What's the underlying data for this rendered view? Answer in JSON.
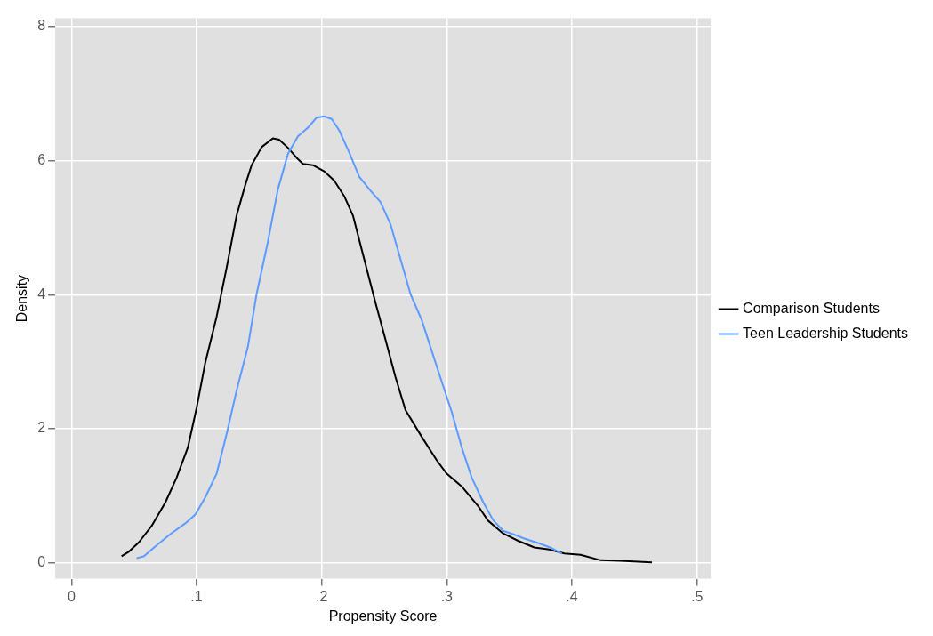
{
  "chart_data": {
    "type": "line",
    "xlabel": "Propensity Score",
    "ylabel": "Density",
    "xlim": [
      -0.013,
      0.511
    ],
    "ylim": [
      -0.235,
      8.12
    ],
    "xticks": [
      {
        "value": 0,
        "label": "0"
      },
      {
        "value": 0.1,
        "label": ".1"
      },
      {
        "value": 0.2,
        "label": ".2"
      },
      {
        "value": 0.3,
        "label": ".3"
      },
      {
        "value": 0.4,
        "label": ".4"
      },
      {
        "value": 0.5,
        "label": ".5"
      }
    ],
    "yticks": [
      0,
      2,
      4,
      6,
      8
    ],
    "grid": true,
    "legend": "right",
    "marker": "none",
    "line_style": "solid",
    "series": [
      {
        "name": "Comparison Students",
        "color": "#000000",
        "x": [
          0.04,
          0.046,
          0.054,
          0.064,
          0.075,
          0.084,
          0.093,
          0.1,
          0.107,
          0.116,
          0.124,
          0.132,
          0.139,
          0.144,
          0.152,
          0.161,
          0.166,
          0.173,
          0.18,
          0.185,
          0.193,
          0.202,
          0.21,
          0.218,
          0.225,
          0.233,
          0.243,
          0.251,
          0.259,
          0.267,
          0.28,
          0.292,
          0.3,
          0.312,
          0.325,
          0.333,
          0.345,
          0.357,
          0.37,
          0.382,
          0.394,
          0.407,
          0.423,
          0.439,
          0.464
        ],
        "values": [
          0.1,
          0.17,
          0.31,
          0.55,
          0.9,
          1.27,
          1.72,
          2.31,
          2.99,
          3.67,
          4.4,
          5.18,
          5.64,
          5.93,
          6.2,
          6.33,
          6.31,
          6.19,
          6.04,
          5.95,
          5.93,
          5.84,
          5.7,
          5.47,
          5.18,
          4.6,
          3.88,
          3.33,
          2.77,
          2.28,
          1.88,
          1.53,
          1.33,
          1.14,
          0.85,
          0.63,
          0.44,
          0.33,
          0.23,
          0.2,
          0.14,
          0.12,
          0.04,
          0.03,
          0.01
        ]
      },
      {
        "name": "Teen Leadership Students",
        "color": "#5b9bff",
        "x": [
          0.052,
          0.058,
          0.066,
          0.079,
          0.091,
          0.099,
          0.107,
          0.116,
          0.124,
          0.132,
          0.141,
          0.148,
          0.157,
          0.165,
          0.173,
          0.181,
          0.189,
          0.196,
          0.202,
          0.208,
          0.214,
          0.222,
          0.23,
          0.239,
          0.247,
          0.255,
          0.263,
          0.271,
          0.28,
          0.288,
          0.296,
          0.304,
          0.312,
          0.32,
          0.329,
          0.337,
          0.345,
          0.353,
          0.361,
          0.374,
          0.384,
          0.392
        ],
        "values": [
          0.07,
          0.1,
          0.23,
          0.43,
          0.59,
          0.72,
          0.98,
          1.33,
          1.92,
          2.57,
          3.22,
          4.01,
          4.79,
          5.57,
          6.1,
          6.36,
          6.49,
          6.64,
          6.66,
          6.62,
          6.45,
          6.12,
          5.76,
          5.55,
          5.38,
          5.05,
          4.53,
          4.01,
          3.62,
          3.16,
          2.7,
          2.25,
          1.72,
          1.27,
          0.91,
          0.64,
          0.48,
          0.43,
          0.37,
          0.29,
          0.22,
          0.14
        ]
      }
    ]
  }
}
